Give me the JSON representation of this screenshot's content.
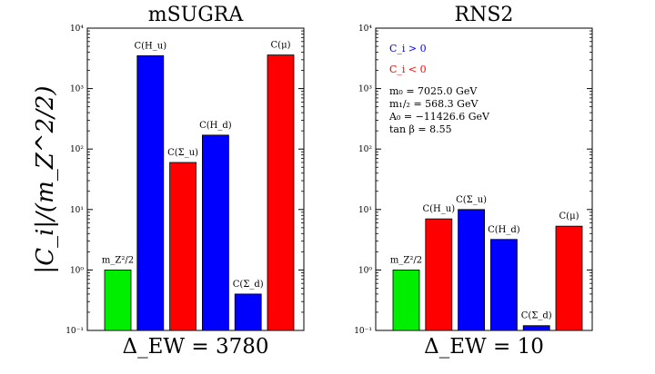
{
  "figure": {
    "ylabel": "|C_i|/(m_Z^2/2)"
  },
  "chart_data": [
    {
      "type": "bar",
      "title": "mSUGRA",
      "xlabel": "Δ_EW = 3780",
      "yscale": "log",
      "ylim": [
        0.1,
        10000
      ],
      "ytick_labels": [
        "10⁻¹",
        "10⁰",
        "10¹",
        "10²",
        "10³",
        "10⁴"
      ],
      "categories": [
        "m_Z²/2",
        "C(H_u)",
        "C(Σ_u)",
        "C(H_d)",
        "C(Σ_d)",
        "C(μ)"
      ],
      "values": [
        1,
        3500,
        60,
        170,
        0.4,
        3600
      ],
      "colors": [
        "#00ee00",
        "#0000ff",
        "#ff0000",
        "#0000ff",
        "#0000ff",
        "#ff0000"
      ],
      "legend": [],
      "annotations": []
    },
    {
      "type": "bar",
      "title": "RNS2",
      "xlabel": "Δ_EW = 10",
      "yscale": "log",
      "ylim": [
        0.1,
        10000
      ],
      "ytick_labels": [
        "10⁻¹",
        "10⁰",
        "10¹",
        "10²",
        "10³",
        "10⁴"
      ],
      "categories": [
        "m_Z²/2",
        "C(H_u)",
        "C(Σ_u)",
        "C(H_d)",
        "C(Σ_d)",
        "C(μ)"
      ],
      "values": [
        1,
        7,
        10,
        3.2,
        0.12,
        5.3
      ],
      "colors": [
        "#00ee00",
        "#ff0000",
        "#0000ff",
        "#0000ff",
        "#0000ff",
        "#ff0000"
      ],
      "legend": [
        {
          "label": "C_i > 0",
          "color": "#0000ff"
        },
        {
          "label": "C_i < 0",
          "color": "#ff0000"
        }
      ],
      "annotations": [
        "m₀ = 7025.0 GeV",
        "m₁/₂ = 568.3 GeV",
        "A₀ = −11426.6 GeV",
        "tan β = 8.55"
      ]
    }
  ]
}
